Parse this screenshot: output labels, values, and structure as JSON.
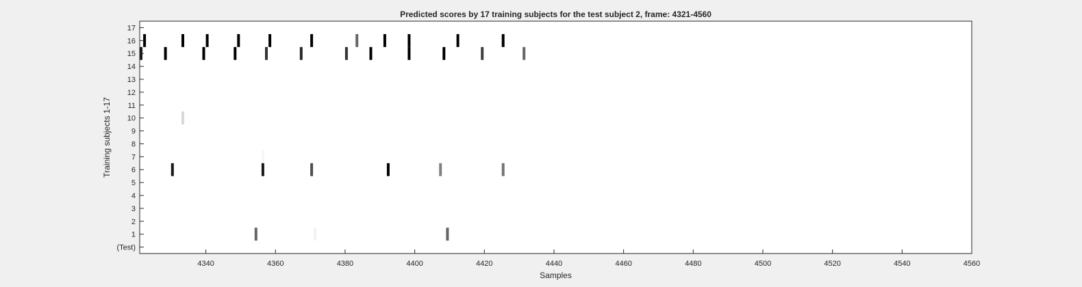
{
  "chart_data": {
    "type": "heatmap",
    "title": "Predicted scores by 17 training subjects for the test subject 2, frame: 4321-4560",
    "xlabel": "Samples",
    "ylabel": "Training subjects 1-17",
    "xlim": [
      4321,
      4560
    ],
    "x_ticks": [
      "4340",
      "4360",
      "4380",
      "4400",
      "4420",
      "4440",
      "4460",
      "4480",
      "4500",
      "4520",
      "4540",
      "4560"
    ],
    "y_ticks": [
      "(Test)",
      "1",
      "2",
      "3",
      "4",
      "5",
      "6",
      "7",
      "8",
      "9",
      "10",
      "11",
      "12",
      "13",
      "14",
      "15",
      "16",
      "17"
    ],
    "colormap": "gray (1 = black, 0 = white)",
    "rows": [
      {
        "row": 16,
        "marks": [
          [
            4322,
            1
          ],
          [
            4333,
            1
          ],
          [
            4340,
            1
          ],
          [
            4349,
            1
          ],
          [
            4358,
            1
          ],
          [
            4370,
            1
          ],
          [
            4383,
            0.6
          ],
          [
            4391,
            1
          ],
          [
            4398,
            1
          ],
          [
            4412,
            1
          ],
          [
            4425,
            1
          ]
        ]
      },
      {
        "row": 15,
        "marks": [
          [
            4321,
            0.9
          ],
          [
            4328,
            1
          ],
          [
            4339,
            1
          ],
          [
            4348,
            1
          ],
          [
            4357,
            0.8
          ],
          [
            4367,
            0.85
          ],
          [
            4380,
            0.8
          ],
          [
            4387,
            1
          ],
          [
            4398,
            1
          ],
          [
            4408,
            1
          ],
          [
            4419,
            0.75
          ],
          [
            4431,
            0.6
          ]
        ]
      },
      {
        "row": 10,
        "marks": [
          [
            4333,
            0.15
          ]
        ]
      },
      {
        "row": 7,
        "marks": [
          [
            4356,
            0.03
          ]
        ]
      },
      {
        "row": 6,
        "marks": [
          [
            4330,
            0.9
          ],
          [
            4356,
            0.9
          ],
          [
            4370,
            0.7
          ],
          [
            4392,
            1
          ],
          [
            4407,
            0.5
          ],
          [
            4425,
            0.55
          ]
        ]
      },
      {
        "row": 1,
        "marks": [
          [
            4354,
            0.6
          ],
          [
            4371,
            0.05
          ],
          [
            4409,
            0.6
          ]
        ]
      }
    ]
  }
}
